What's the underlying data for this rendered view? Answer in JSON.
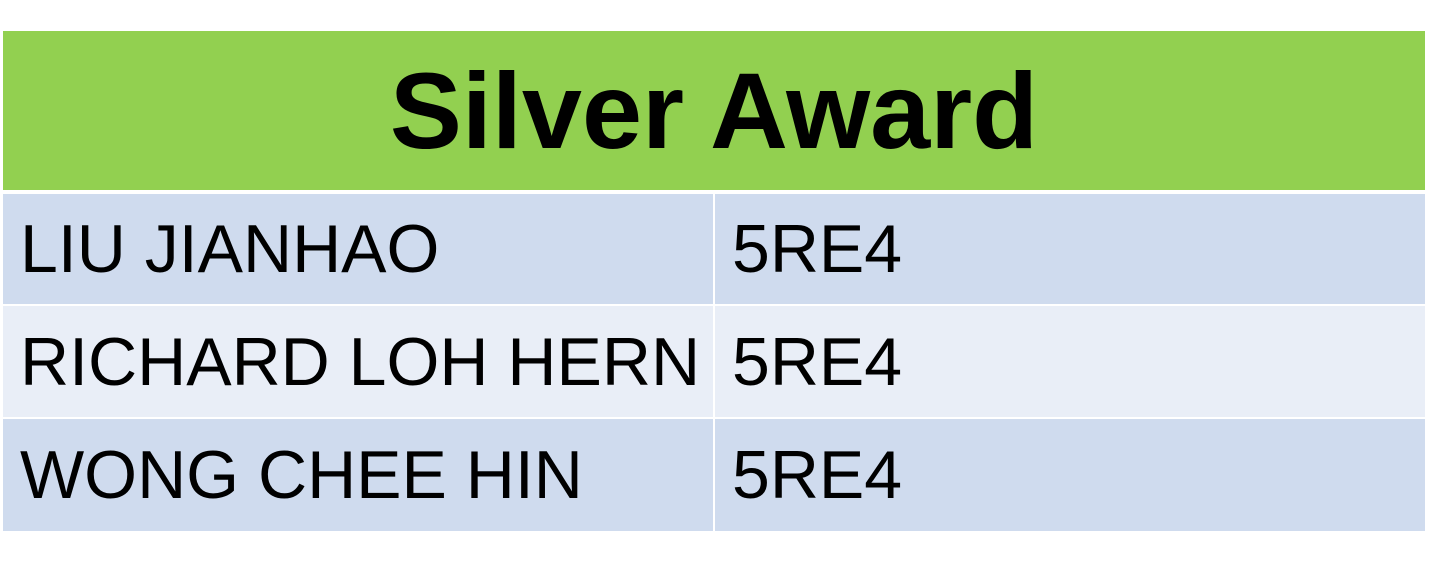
{
  "title": "Silver Award",
  "colors": {
    "header_bg": "#92d050",
    "row_dark": "#cfdbee",
    "row_light": "#e9eef7",
    "text": "#000000"
  },
  "rows": [
    {
      "name": "LIU JIANHAO",
      "class": "5RE4"
    },
    {
      "name": "RICHARD LOH HERN DA",
      "class": "5RE4"
    },
    {
      "name": "WONG CHEE HIN",
      "class": "5RE4"
    }
  ]
}
